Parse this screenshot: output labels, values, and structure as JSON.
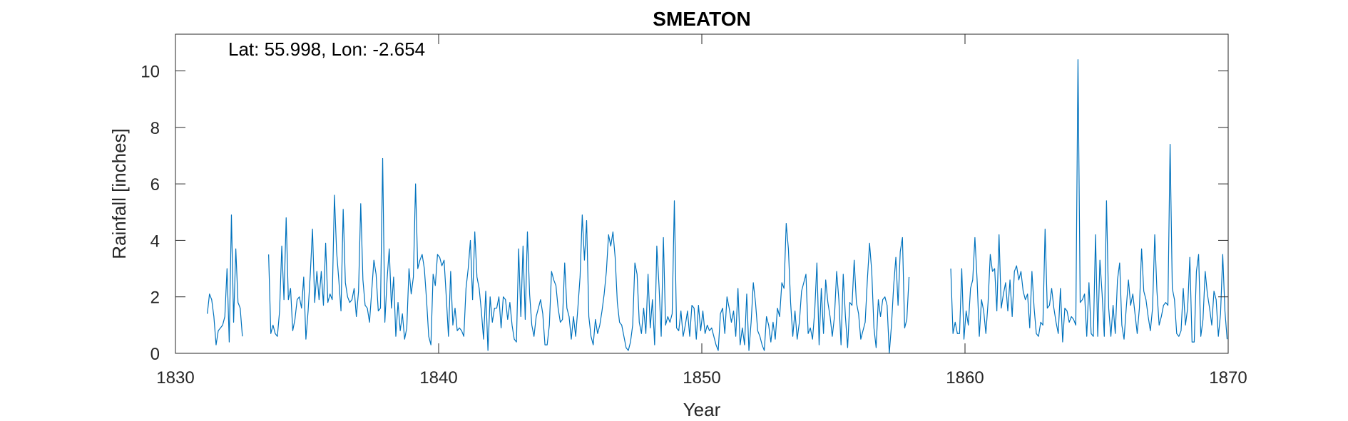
{
  "chart_data": {
    "type": "line",
    "title": "SMEATON",
    "annotation": "Lat: 55.998, Lon: -2.654",
    "xlabel": "Year",
    "ylabel": "Rainfall [inches]",
    "xlim": [
      1830,
      1870
    ],
    "ylim": [
      0,
      11.3
    ],
    "xticks": [
      1830,
      1840,
      1850,
      1860,
      1870
    ],
    "yticks": [
      0,
      2,
      4,
      6,
      8,
      10
    ],
    "grid": false,
    "line_color": "#0072BD",
    "series": [
      {
        "segments": [
          {
            "start": 1831.21,
            "step": 0.0833333,
            "values": [
              1.4,
              2.1,
              1.9,
              1.3,
              0.3,
              0.8,
              0.9,
              1.0,
              1.3,
              3.0,
              0.4,
              4.9,
              1.1,
              3.7,
              1.8,
              1.6,
              0.6
            ]
          },
          {
            "start": 1833.54,
            "step": 0.0833333,
            "values": [
              3.5,
              0.7,
              1.0,
              0.7,
              0.6,
              1.5,
              3.8,
              1.9,
              4.8,
              1.9,
              2.3,
              0.8,
              1.2,
              1.9,
              2.0,
              1.6,
              2.7,
              0.5,
              1.5,
              2.8,
              4.4,
              1.8,
              2.9,
              1.9,
              2.9,
              1.7,
              3.9,
              1.8,
              2.1,
              1.9,
              5.6,
              3.6,
              2.6,
              1.5,
              5.1,
              2.5,
              2.0,
              1.8,
              1.9,
              2.3,
              1.3,
              2.2,
              5.3,
              2.6,
              1.7,
              1.6,
              1.1,
              2.2,
              3.3,
              2.8,
              1.5,
              1.6,
              6.9,
              1.1,
              2.6,
              3.7,
              1.6,
              2.7,
              0.6,
              1.8,
              0.8,
              1.4,
              0.5,
              0.9,
              3.0,
              2.1,
              2.7,
              6.0,
              3.0,
              3.3,
              3.5,
              3.0,
              1.9,
              0.6,
              0.3,
              2.8,
              2.4,
              3.5,
              3.4,
              3.1,
              3.3,
              2.0,
              0.6,
              2.9,
              1.0,
              1.6,
              0.8,
              0.9,
              0.8,
              0.6,
              2.3,
              3.0,
              4.0,
              1.9,
              4.3,
              2.7,
              2.3,
              1.5,
              0.5,
              2.2,
              0.1,
              2.0,
              1.1,
              1.6,
              1.6,
              2.0,
              0.9,
              2.0,
              1.9,
              1.2,
              1.8,
              1.0,
              0.5,
              0.4,
              3.7,
              1.3,
              3.8,
              1.2,
              4.3,
              2.1,
              1.0,
              0.6,
              1.3,
              1.6,
              1.9,
              1.4,
              0.3,
              0.3,
              1.0,
              2.9,
              2.6,
              2.4,
              1.6,
              1.1,
              1.2,
              3.2,
              1.6,
              1.3,
              0.5,
              1.3,
              0.6,
              1.6,
              2.7,
              4.9,
              3.3,
              4.7,
              1.3,
              0.6,
              0.3,
              1.2,
              0.7,
              1.0,
              1.5,
              2.1,
              2.9,
              4.2,
              3.8,
              4.3,
              3.4,
              1.8,
              1.1,
              1.0,
              0.6,
              0.2,
              0.1,
              0.4,
              1.0,
              3.2,
              2.8,
              1.1,
              0.7,
              1.6,
              0.7,
              2.8,
              0.9,
              1.9,
              0.3,
              3.8,
              2.4,
              0.6,
              4.1,
              1.0,
              1.3,
              1.1,
              1.4,
              5.4,
              0.9,
              0.8,
              1.5,
              0.6,
              1.0,
              1.5,
              0.6,
              1.7,
              1.6,
              0.5,
              1.7,
              0.8,
              1.5,
              0.7,
              1.0,
              0.8,
              0.9,
              0.6,
              0.3,
              0.1,
              1.4,
              1.6,
              0.7,
              2.0,
              1.6,
              1.1,
              1.5,
              0.6,
              2.3,
              0.3,
              0.9,
              0.3,
              2.1,
              0.1,
              1.1,
              2.5,
              1.8,
              0.8,
              0.6,
              0.3,
              0.1,
              1.3,
              1.0,
              0.4,
              1.1,
              0.5,
              1.6,
              1.3,
              2.5,
              2.3,
              4.6,
              3.7,
              1.8,
              0.6,
              1.5,
              0.5,
              1.1,
              2.2,
              2.5,
              2.8,
              0.7,
              0.9,
              0.5,
              1.5,
              3.2,
              0.3,
              2.3,
              0.7,
              2.6,
              1.8,
              1.3,
              0.6,
              1.3,
              2.9,
              1.9,
              0.3,
              2.8,
              1.3,
              0.2,
              1.8,
              1.7,
              3.3,
              1.8,
              1.4,
              0.5,
              0.8,
              1.1,
              2.6,
              3.9,
              2.9,
              0.9,
              0.2,
              1.9,
              1.3,
              1.9,
              2.0,
              1.7,
              0.0,
              1.0,
              2.4,
              3.4,
              1.7,
              3.6,
              4.1,
              0.9,
              1.2,
              2.7
            ]
          },
          {
            "start": 1859.46,
            "step": 0.0833333,
            "values": [
              3.0,
              0.7,
              1.1,
              0.7,
              0.7,
              3.0,
              0.5,
              1.5,
              1.0,
              2.3,
              2.6,
              4.1,
              2.6,
              0.6,
              1.9,
              1.5,
              0.7,
              1.8,
              3.5,
              2.9,
              3.0,
              1.5,
              4.2,
              1.6,
              2.1,
              2.5,
              1.5,
              2.6,
              1.3,
              2.9,
              3.1,
              2.6,
              2.9,
              2.2,
              1.9,
              2.1,
              0.9,
              2.9,
              1.6,
              0.7,
              0.6,
              1.1,
              1.0,
              4.4,
              1.6,
              1.7,
              2.3,
              1.6,
              1.1,
              0.7,
              2.3,
              0.4,
              1.6,
              1.5,
              1.1,
              1.3,
              1.2,
              1.0,
              10.4,
              1.8,
              1.9,
              2.1,
              0.6,
              2.5,
              0.7,
              0.6,
              4.2,
              0.6,
              3.3,
              2.1,
              0.6,
              5.4,
              1.6,
              0.6,
              1.7,
              0.7,
              2.6,
              3.2,
              1.0,
              0.5,
              1.6,
              2.6,
              1.7,
              2.1,
              1.4,
              0.7,
              1.6,
              3.7,
              2.2,
              1.9,
              1.3,
              0.8,
              1.6,
              4.2,
              2.2,
              1.0,
              1.3,
              1.7,
              1.8,
              1.7,
              7.4,
              2.3,
              1.9,
              0.7,
              0.6,
              0.8,
              2.3,
              1.0,
              1.6,
              3.4,
              0.4,
              0.4,
              2.9,
              3.5,
              0.6,
              1.2,
              2.9,
              2.1,
              1.6,
              1.0,
              2.2,
              1.9,
              0.6,
              1.4,
              3.5,
              1.5,
              0.5
            ]
          }
        ]
      }
    ]
  }
}
